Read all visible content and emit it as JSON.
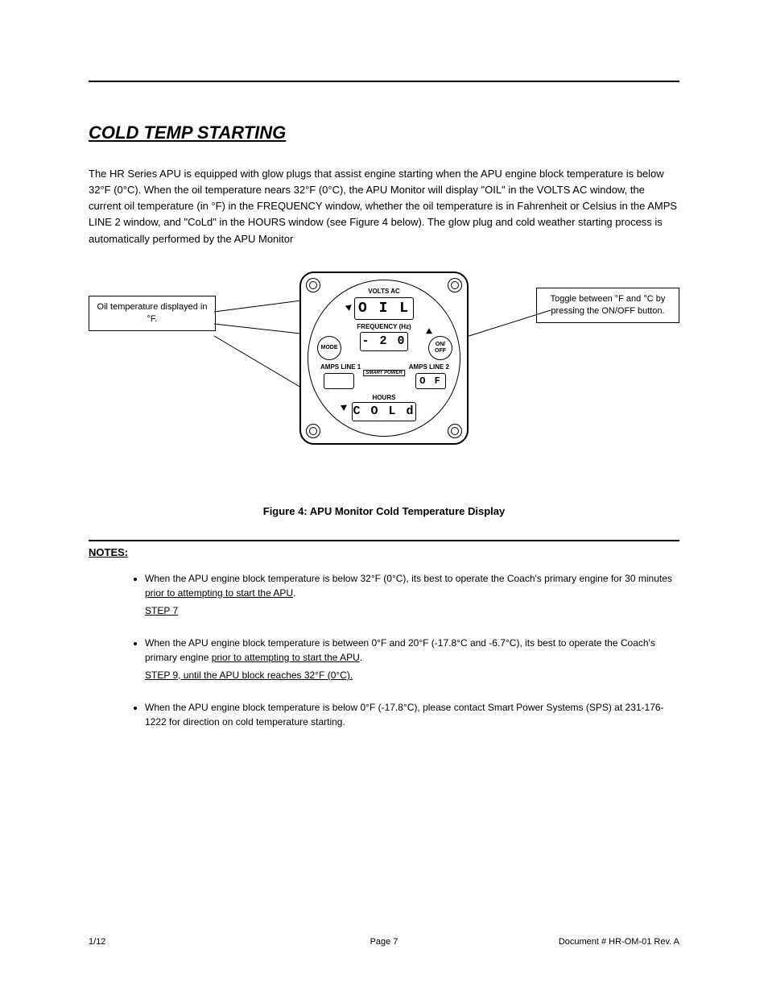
{
  "header": {
    "title": "COLD TEMP STARTING",
    "description_html": "The HR Series APU is equipped with glow plugs that assist engine starting when the APU engine block temperature is below 32°F (0°C). When the oil temperature nears 32°F (0°C), the APU Monitor will display \"OIL\" in the VOLTS AC window, the current oil temperature (in °F) in the FREQUENCY window, whether the oil temperature is in Fahrenheit or Celsius in the AMPS LINE 2 window, and \"CoLd\" in the HOURS window (see Figure 4 below). The glow plug and cold weather starting process is automatically performed by the APU Monitor"
  },
  "callouts": {
    "left": "Oil temperature displayed in °F.",
    "right": "Toggle between °F and °C by pressing the ON/OFF button."
  },
  "gauge": {
    "labels": {
      "volts": "VOLTS AC",
      "freq": "FREQUENCY (Hz)",
      "amps1": "AMPS LINE 1",
      "amps2": "AMPS LINE 2",
      "hours": "HOURS",
      "brand": "SMART POWER"
    },
    "readouts": {
      "volts": "O I L",
      "freq": "- 2 0",
      "amps1": "",
      "amps2": "O F",
      "hours": "C O L d"
    },
    "buttons": {
      "mode": "MODE",
      "onoff": "ON/\nOFF"
    }
  },
  "figure_caption": "Figure 4: APU Monitor Cold Temperature Display",
  "notes": {
    "heading": "NOTES:",
    "items": [
      {
        "text_html": "When the APU engine block temperature is below 32°F (0°C), its best to operate the Coach's primary engine for 30 minutes <span class='underline-tail'>prior to attempting to start the APU</span>.",
        "step": "STEP 7"
      },
      {
        "text_html": "When the APU engine block temperature is between 0°F and 20°F (-17.8°C and -6.7°C), its best to operate the Coach's primary engine <span class='underline-tail'>prior to attempting to start the APU</span>.",
        "step_html": "STEP 9, until the APU block reaches 32°F (0°C)."
      },
      {
        "text_html": "When the APU engine block temperature is below 0°F (-17.8°C), please contact Smart Power Systems (SPS) at 231-176-1222 for direction on cold temperature starting.",
        "step": null
      }
    ]
  },
  "footer": {
    "left": "1/12",
    "center": "Page 7",
    "right": "Document # HR-OM-01 Rev. A"
  },
  "figure_svg": {
    "panel_border_radius": 18,
    "stroke": "#000000",
    "fontsizes": {
      "label": 8,
      "seg_large": 18,
      "seg_med": 15,
      "seg_small": 12,
      "btn": 7
    }
  }
}
